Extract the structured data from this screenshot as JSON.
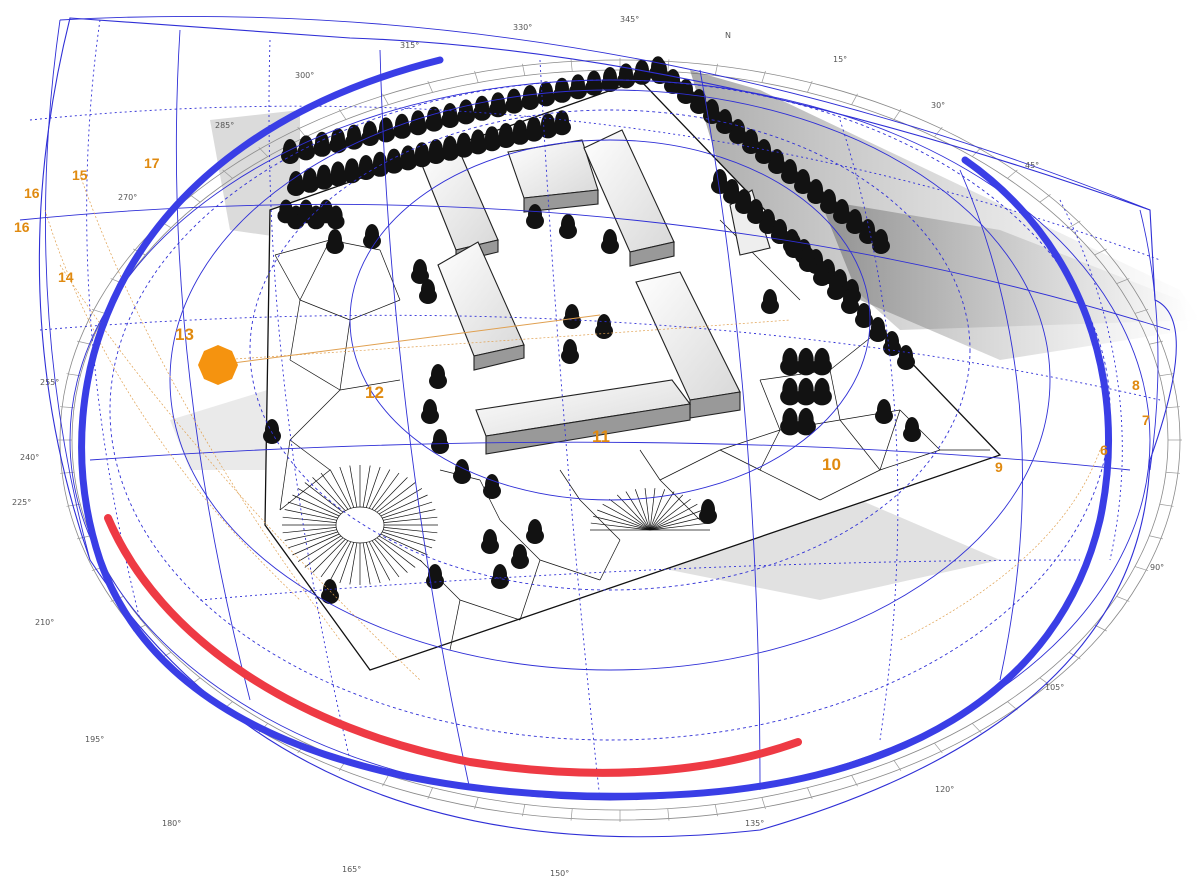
{
  "azimuth_labels": [
    {
      "text": "N"
    },
    {
      "text": "345°"
    },
    {
      "text": "330°"
    },
    {
      "text": "315°"
    },
    {
      "text": "300°"
    },
    {
      "text": "285°"
    },
    {
      "text": "270°"
    },
    {
      "text": "255°"
    },
    {
      "text": "240°"
    },
    {
      "text": "225°"
    },
    {
      "text": "210°"
    },
    {
      "text": "195°"
    },
    {
      "text": "180°"
    },
    {
      "text": "165°"
    },
    {
      "text": "150°"
    },
    {
      "text": "135°"
    },
    {
      "text": "120°"
    },
    {
      "text": "105°"
    },
    {
      "text": "90°"
    },
    {
      "text": "45°"
    },
    {
      "text": "30°"
    },
    {
      "text": "15°"
    }
  ],
  "hour_labels": [
    {
      "text": "16"
    },
    {
      "text": "15"
    },
    {
      "text": "17"
    },
    {
      "text": "16"
    },
    {
      "text": "14"
    },
    {
      "text": "13"
    },
    {
      "text": "12"
    },
    {
      "text": "11"
    },
    {
      "text": "10"
    },
    {
      "text": "9"
    },
    {
      "text": "8"
    },
    {
      "text": "7"
    },
    {
      "text": "6"
    }
  ],
  "colors": {
    "sun": "#f5930f",
    "sun_path_winter": "#ee3a44",
    "sun_path_summer": "#3a3ee6",
    "sky_grid": "#2f2fd6",
    "hour_label": "#e08a10",
    "mesh": "#111111"
  },
  "icons": {
    "sun": "sun-icon"
  }
}
